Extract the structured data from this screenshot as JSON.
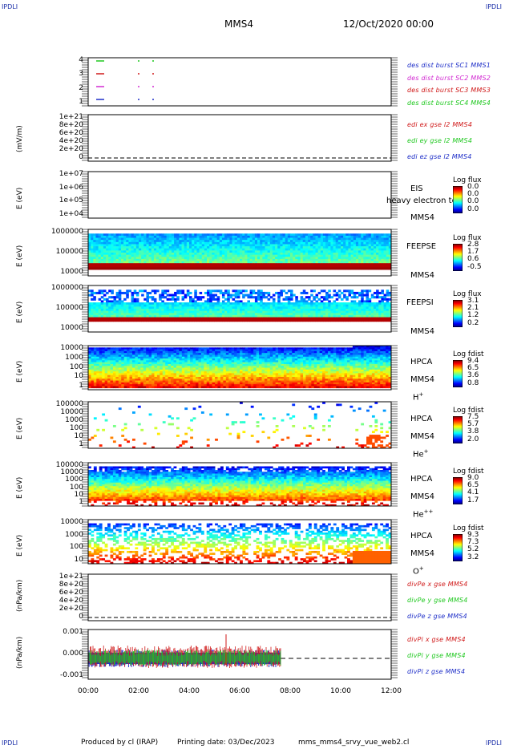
{
  "corners": {
    "tl": "IPDLI",
    "tr": "IPDLI",
    "bl": "IPDLI",
    "br": "IPDLI"
  },
  "header": {
    "mission": "MMS4",
    "date": "12/Oct/2020 00:00"
  },
  "footer": {
    "produced": "Produced by cl (IRAP)",
    "printed": "Printing date: 03/Dec/2023",
    "script": "mms_mms4_srvy_vue_web2.cl"
  },
  "chart_data": [
    {
      "type": "line",
      "id": "burst",
      "ylabel": "",
      "yticks": [
        "4",
        "3",
        "2",
        "1"
      ],
      "legend": [
        {
          "label": "des dist burst SC1 MMS1",
          "color": "#1f2fc8"
        },
        {
          "label": "des dist burst SC2 MMS2",
          "color": "#d22ad2"
        },
        {
          "label": "des dist burst SC3 MMS3",
          "color": "#d01a1a"
        },
        {
          "label": "des dist burst SC4 MMS4",
          "color": "#1fc81f"
        }
      ]
    },
    {
      "type": "line",
      "id": "edi",
      "ylabel": "(mV/m)",
      "yticks": [
        "1e+21",
        "8e+20",
        "6e+20",
        "4e+20",
        "2e+20",
        "0"
      ],
      "legend": [
        {
          "label": "edi ex gse l2 MMS4",
          "color": "#d01a1a"
        },
        {
          "label": "edi ey gse l2 MMS4",
          "color": "#1fc81f"
        },
        {
          "label": "edi ez gse l2 MMS4",
          "color": "#1f2fc8"
        }
      ]
    },
    {
      "type": "heatmap",
      "id": "eis",
      "ylabel": "E (eV)",
      "yticks": [
        "1e+07",
        "1e+06",
        "1e+05",
        "1e+04"
      ],
      "instrument": "EIS",
      "spacecraft": "MMS4",
      "overlay": "heavy electron to",
      "cbtitle": "Log flux",
      "cbvals": [
        "0.0",
        "0.0",
        "0.0",
        "0.0"
      ]
    },
    {
      "type": "heatmap",
      "id": "feepse",
      "ylabel": "E (eV)",
      "yticks": [
        "1000000",
        "100000",
        "10000"
      ],
      "instrument": "FEEPSE",
      "spacecraft": "MMS4",
      "cbtitle": "Log flux",
      "cbvals": [
        "2.8",
        "1.7",
        "0.6",
        "-0.5"
      ]
    },
    {
      "type": "heatmap",
      "id": "feepsi",
      "ylabel": "E (eV)",
      "yticks": [
        "1000000",
        "100000",
        "10000"
      ],
      "instrument": "FEEPSI",
      "spacecraft": "MMS4",
      "cbtitle": "Log flux",
      "cbvals": [
        "3.1",
        "2.1",
        "1.2",
        "0.2"
      ]
    },
    {
      "type": "heatmap",
      "id": "hpca_h",
      "ylabel": "E (eV)",
      "yticks": [
        "10000",
        "1000",
        "100",
        "10",
        "1"
      ],
      "instrument": "HPCA",
      "spacecraft": "MMS4",
      "species": "H",
      "species_sup": "+",
      "cbtitle": "Log fdist",
      "cbvals": [
        "9.4",
        "6.5",
        "3.6",
        "0.8"
      ]
    },
    {
      "type": "heatmap",
      "id": "hpca_he",
      "ylabel": "E (eV)",
      "yticks": [
        "100000",
        "10000",
        "1000",
        "100",
        "10",
        "1"
      ],
      "instrument": "HPCA",
      "spacecraft": "MMS4",
      "species": "He",
      "species_sup": "+",
      "cbtitle": "Log fdist",
      "cbvals": [
        "7.5",
        "5.7",
        "3.8",
        "2.0"
      ]
    },
    {
      "type": "heatmap",
      "id": "hpca_hepp",
      "ylabel": "E (eV)",
      "yticks": [
        "100000",
        "10000",
        "1000",
        "100",
        "10",
        "1"
      ],
      "instrument": "HPCA",
      "spacecraft": "MMS4",
      "species": "He",
      "species_sup": "++",
      "cbtitle": "Log fdist",
      "cbvals": [
        "9.0",
        "6.5",
        "4.1",
        "1.7"
      ]
    },
    {
      "type": "heatmap",
      "id": "hpca_o",
      "ylabel": "E (eV)",
      "yticks": [
        "10000",
        "1000",
        "100",
        "10"
      ],
      "instrument": "HPCA",
      "spacecraft": "MMS4",
      "species": "O",
      "species_sup": "+",
      "cbtitle": "Log fdist",
      "cbvals": [
        "9.3",
        "7.3",
        "5.2",
        "3.2"
      ]
    },
    {
      "type": "line",
      "id": "divpe",
      "ylabel": "(nPa/km)",
      "yticks": [
        "1e+21",
        "8e+20",
        "6e+20",
        "4e+20",
        "2e+20",
        "0"
      ],
      "legend": [
        {
          "label": "divPe x gse MMS4",
          "color": "#d01a1a"
        },
        {
          "label": "divPe y gse MMS4",
          "color": "#1fc81f"
        },
        {
          "label": "divPe z gse MMS4",
          "color": "#1f2fc8"
        }
      ]
    },
    {
      "type": "line",
      "id": "divpi",
      "ylabel": "(nPa/km)",
      "yticks": [
        "0.001",
        "0.000",
        "-0.001"
      ],
      "legend": [
        {
          "label": "divPi x gse MMS4",
          "color": "#d01a1a"
        },
        {
          "label": "divPi y gse MMS4",
          "color": "#1fc81f"
        },
        {
          "label": "divPi z gse MMS4",
          "color": "#1f2fc8"
        }
      ]
    }
  ],
  "xaxis": {
    "ticks": [
      "00:00",
      "02:00",
      "04:00",
      "06:00",
      "08:00",
      "10:00",
      "12:00"
    ]
  }
}
